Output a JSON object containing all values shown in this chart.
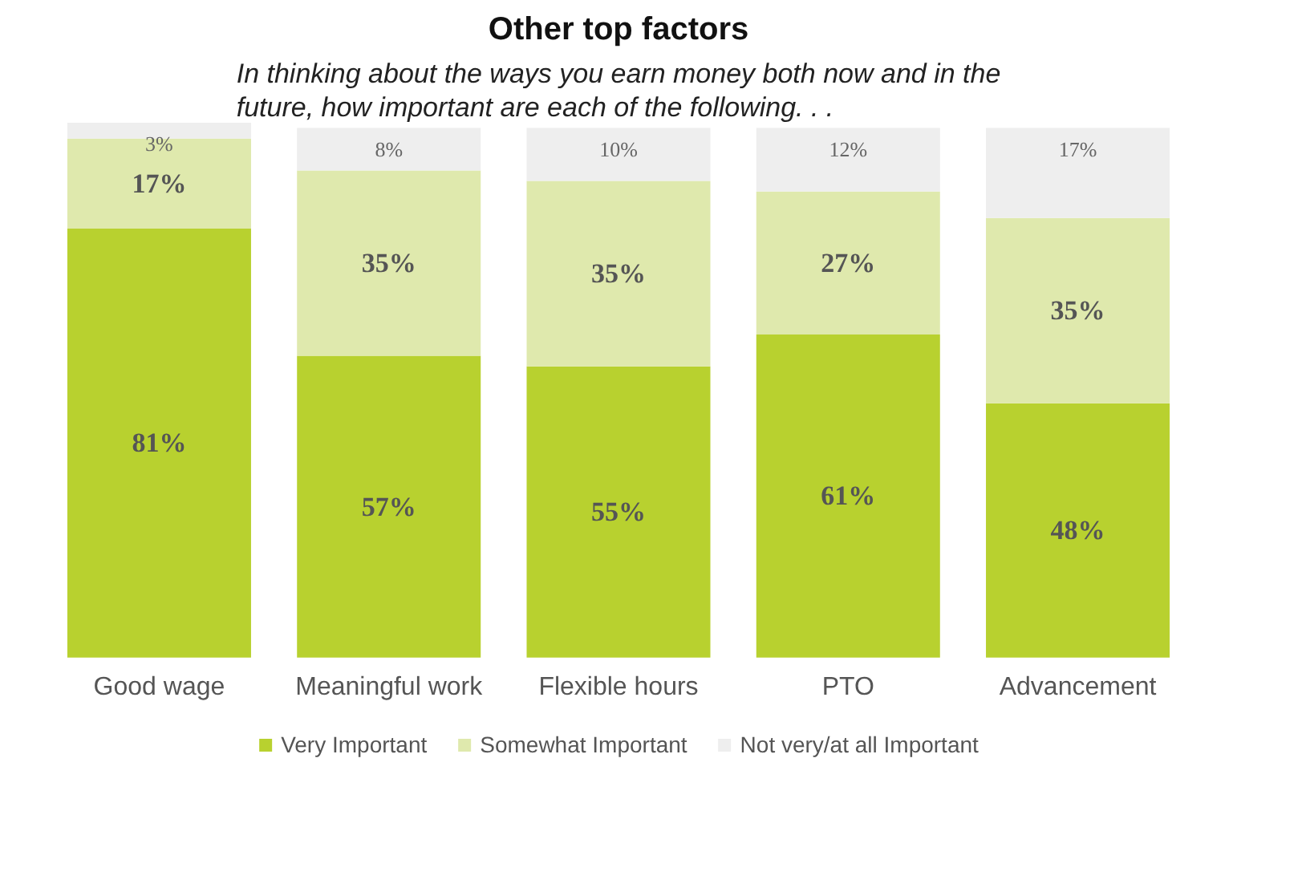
{
  "chart_data": {
    "type": "bar",
    "stacked": true,
    "title": "Other top factors",
    "subtitle": "In thinking about the ways you earn money both now and in the future, how important are each of the following. . .",
    "categories": [
      "Good wage",
      "Meaningful work",
      "Flexible hours",
      "PTO",
      "Advancement"
    ],
    "series": [
      {
        "name": "Very Important",
        "color": "#b8d12f",
        "values": [
          81,
          57,
          55,
          61,
          48
        ],
        "value_labels": [
          "81%",
          "57%",
          "55%",
          "61%",
          "48%"
        ]
      },
      {
        "name": "Somewhat Important",
        "color": "#dfe9ad",
        "values": [
          17,
          35,
          35,
          27,
          35
        ],
        "value_labels": [
          "17%",
          "35%",
          "35%",
          "27%",
          "35%"
        ]
      },
      {
        "name": "Not very/at all Important",
        "color": "#eeeeee",
        "values": [
          3,
          8,
          10,
          12,
          17
        ],
        "value_labels": [
          "3%",
          "8%",
          "10%",
          "12%",
          "17%"
        ]
      }
    ],
    "legend": "bottom"
  }
}
